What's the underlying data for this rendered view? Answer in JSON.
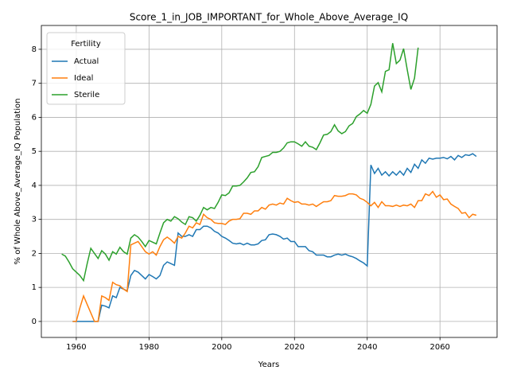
{
  "chart_data": {
    "type": "line",
    "title": "Score_1_in_JOB_IMPORTANT_for_Whole_Above_Average_IQ",
    "xlabel": "Years",
    "ylabel": "% of Whole Above_Average_IQ Population",
    "legend_title": "Fertility",
    "legend": "upper left",
    "grid": true,
    "xlim": [
      1950.4,
      2075.7
    ],
    "xticks": [
      1960,
      1980,
      2000,
      2020,
      2040,
      2060
    ],
    "ylim": [
      -0.47,
      8.7
    ],
    "yticks": [
      0,
      1,
      2,
      3,
      4,
      5,
      6,
      7,
      8
    ],
    "x": [
      1956,
      1957,
      1958,
      1959,
      1960,
      1961,
      1962,
      1963,
      1964,
      1965,
      1966,
      1967,
      1968,
      1969,
      1970,
      1971,
      1972,
      1973,
      1974,
      1975,
      1976,
      1977,
      1978,
      1979,
      1980,
      1981,
      1982,
      1983,
      1984,
      1985,
      1986,
      1987,
      1988,
      1989,
      1990,
      1991,
      1992,
      1993,
      1994,
      1995,
      1996,
      1997,
      1998,
      1999,
      2000,
      2001,
      2002,
      2003,
      2004,
      2005,
      2006,
      2007,
      2008,
      2009,
      2010,
      2011,
      2012,
      2013,
      2014,
      2015,
      2016,
      2017,
      2018,
      2019,
      2020,
      2021,
      2022,
      2023,
      2024,
      2025,
      2026,
      2027,
      2028,
      2029,
      2030,
      2031,
      2032,
      2033,
      2034,
      2035,
      2036,
      2037,
      2038,
      2039,
      2040,
      2041,
      2042,
      2043,
      2044,
      2045,
      2046,
      2047,
      2048,
      2049,
      2050,
      2051,
      2052,
      2053,
      2054,
      2055,
      2056,
      2057,
      2058,
      2059,
      2060,
      2061,
      2062,
      2063,
      2064,
      2065,
      2066,
      2067,
      2068,
      2069,
      2070
    ],
    "series": [
      {
        "name": "Actual",
        "color": "#1f77b4",
        "values": [
          null,
          null,
          null,
          0,
          0,
          0,
          0,
          0,
          0,
          0,
          0,
          0.48,
          0.45,
          0.4,
          0.75,
          0.7,
          1.0,
          0.95,
          0.9,
          1.35,
          1.5,
          1.45,
          1.35,
          1.25,
          1.38,
          1.32,
          1.25,
          1.35,
          1.65,
          1.75,
          1.7,
          1.65,
          2.6,
          2.5,
          2.5,
          2.55,
          2.5,
          2.7,
          2.7,
          2.8,
          2.8,
          2.75,
          2.65,
          2.6,
          2.5,
          2.45,
          2.38,
          2.3,
          2.28,
          2.3,
          2.25,
          2.3,
          2.25,
          2.25,
          2.28,
          2.38,
          2.4,
          2.55,
          2.57,
          2.55,
          2.5,
          2.42,
          2.45,
          2.35,
          2.35,
          2.2,
          2.2,
          2.2,
          2.08,
          2.05,
          1.95,
          1.95,
          1.95,
          1.9,
          1.9,
          1.95,
          1.98,
          1.95,
          1.98,
          1.93,
          1.9,
          1.85,
          1.78,
          1.72,
          1.63,
          4.6,
          4.35,
          4.5,
          4.3,
          4.4,
          4.28,
          4.4,
          4.3,
          4.42,
          4.3,
          4.5,
          4.38,
          4.62,
          4.5,
          4.75,
          4.65,
          4.8,
          4.77,
          4.8,
          4.8,
          4.82,
          4.78,
          4.85,
          4.75,
          4.88,
          4.82,
          4.9,
          4.88,
          4.93,
          4.85
        ]
      },
      {
        "name": "Ideal",
        "color": "#ff7f0e",
        "values": [
          null,
          null,
          null,
          0,
          0,
          0.4,
          0.75,
          0.5,
          0.25,
          0,
          0,
          0.75,
          0.7,
          0.62,
          1.15,
          1.08,
          1.05,
          0.95,
          0.88,
          2.25,
          2.3,
          2.35,
          2.2,
          2.05,
          1.98,
          2.05,
          1.95,
          2.2,
          2.4,
          2.48,
          2.4,
          2.3,
          2.5,
          2.45,
          2.6,
          2.8,
          2.75,
          2.9,
          2.85,
          3.15,
          3.05,
          3.0,
          2.9,
          2.88,
          2.88,
          2.85,
          2.95,
          3.0,
          3.0,
          3.02,
          3.18,
          3.18,
          3.15,
          3.25,
          3.25,
          3.35,
          3.3,
          3.42,
          3.45,
          3.42,
          3.48,
          3.45,
          3.62,
          3.55,
          3.5,
          3.52,
          3.45,
          3.45,
          3.42,
          3.45,
          3.38,
          3.45,
          3.52,
          3.52,
          3.55,
          3.7,
          3.68,
          3.68,
          3.7,
          3.75,
          3.75,
          3.72,
          3.62,
          3.58,
          3.5,
          3.4,
          3.5,
          3.35,
          3.52,
          3.4,
          3.4,
          3.38,
          3.42,
          3.38,
          3.42,
          3.4,
          3.45,
          3.35,
          3.55,
          3.55,
          3.75,
          3.7,
          3.82,
          3.65,
          3.72,
          3.58,
          3.6,
          3.45,
          3.38,
          3.32,
          3.18,
          3.2,
          3.05,
          3.15,
          3.12
        ]
      },
      {
        "name": "Sterile",
        "color": "#2ca02c",
        "values": [
          1.98,
          1.92,
          1.75,
          1.55,
          1.45,
          1.35,
          1.2,
          1.7,
          2.15,
          2.0,
          1.85,
          2.08,
          1.98,
          1.8,
          2.05,
          1.98,
          2.18,
          2.05,
          1.98,
          2.45,
          2.55,
          2.48,
          2.35,
          2.2,
          2.38,
          2.33,
          2.28,
          2.6,
          2.9,
          3.0,
          2.95,
          3.08,
          3.02,
          2.92,
          2.85,
          3.08,
          3.05,
          2.95,
          3.12,
          3.35,
          3.28,
          3.35,
          3.32,
          3.5,
          3.72,
          3.7,
          3.78,
          3.98,
          3.98,
          4.0,
          4.1,
          4.22,
          4.38,
          4.4,
          4.55,
          4.82,
          4.85,
          4.88,
          4.97,
          4.97,
          5.0,
          5.1,
          5.25,
          5.28,
          5.28,
          5.22,
          5.15,
          5.28,
          5.15,
          5.12,
          5.05,
          5.25,
          5.48,
          5.5,
          5.58,
          5.78,
          5.6,
          5.52,
          5.58,
          5.75,
          5.82,
          6.02,
          6.1,
          6.2,
          6.12,
          6.38,
          6.92,
          7.02,
          6.75,
          7.35,
          7.4,
          8.18,
          7.58,
          7.68,
          8.02,
          7.4,
          6.82,
          7.15,
          8.05,
          null,
          null,
          null,
          null,
          null,
          null,
          null,
          null,
          null,
          null,
          null,
          null,
          null,
          null,
          null,
          null
        ]
      }
    ]
  }
}
